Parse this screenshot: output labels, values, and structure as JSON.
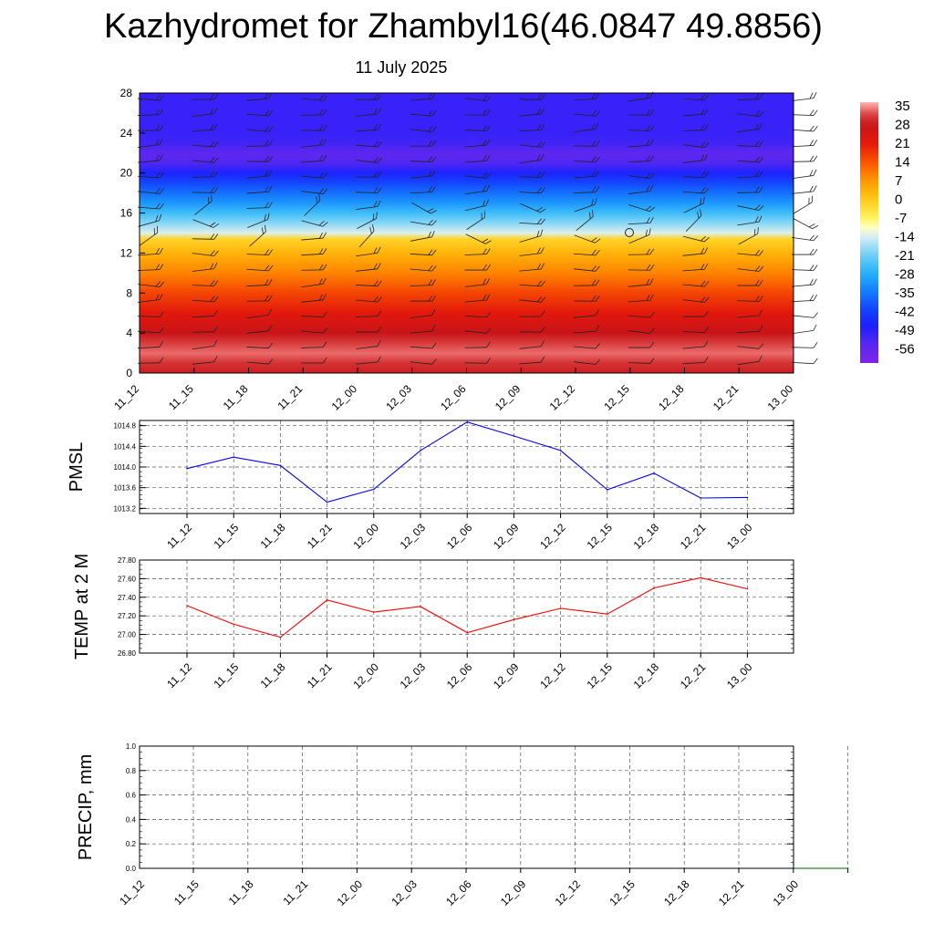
{
  "title": "Kazhydromet for Zhambyl16(46.0847 49.8856)",
  "subtitle": "11 July 2025",
  "time_labels": [
    "11_12",
    "11_15",
    "11_18",
    "11_21",
    "12_00",
    "12_03",
    "12_06",
    "12_09",
    "12_12",
    "12_15",
    "12_18",
    "12_21",
    "13_00"
  ],
  "colors": {
    "pmsl_line": "#0000ff",
    "temp_line": "#ff0000",
    "precip_line": "#006400",
    "grid": "#555555"
  },
  "chart_data": [
    {
      "type": "heatmap",
      "title": "",
      "xlabel": "",
      "ylabel": "",
      "x": [
        "11_12",
        "11_15",
        "11_18",
        "11_21",
        "12_00",
        "12_03",
        "12_06",
        "12_09",
        "12_12",
        "12_15",
        "12_18",
        "12_21",
        "13_00"
      ],
      "yticks": [
        0,
        4,
        8,
        12,
        16,
        20,
        24,
        28
      ],
      "ylim": [
        0,
        28
      ],
      "colorbar": {
        "levels": [
          "35",
          "28",
          "21",
          "14",
          "7",
          "0",
          "-7",
          "-14",
          "-21",
          "-28",
          "-35",
          "-42",
          "-49",
          "-56"
        ],
        "range": [
          -63,
          37
        ]
      },
      "temperature_profile": [
        {
          "level": 0,
          "value": 29
        },
        {
          "level": 1,
          "value": 31
        },
        {
          "level": 2,
          "value": 34
        },
        {
          "level": 3,
          "value": 32
        },
        {
          "level": 4,
          "value": 28
        },
        {
          "level": 6,
          "value": 22
        },
        {
          "level": 8,
          "value": 16
        },
        {
          "level": 10,
          "value": 9
        },
        {
          "level": 12,
          "value": 3
        },
        {
          "level": 13.4,
          "value": -2
        },
        {
          "level": 14,
          "value": -14
        },
        {
          "level": 15,
          "value": -20
        },
        {
          "level": 16,
          "value": -26
        },
        {
          "level": 17,
          "value": -32
        },
        {
          "level": 18,
          "value": -37
        },
        {
          "level": 19,
          "value": -42
        },
        {
          "level": 20,
          "value": -48
        },
        {
          "level": 21,
          "value": -55
        },
        {
          "level": 22,
          "value": -57
        },
        {
          "level": 23,
          "value": -53
        },
        {
          "level": 24,
          "value": -52
        },
        {
          "level": 28,
          "value": -52
        }
      ],
      "grid": false
    },
    {
      "type": "line",
      "ylabel": "PMSL",
      "x": [
        "11_12",
        "11_15",
        "11_18",
        "11_21",
        "12_00",
        "12_03",
        "12_06",
        "12_09",
        "12_12",
        "12_15",
        "12_18",
        "12_21",
        "13_00"
      ],
      "series": [
        {
          "values": [
            1013.97,
            1014.19,
            1014.03,
            1013.32,
            1013.57,
            1014.32,
            1014.87,
            1014.6,
            1014.32,
            1013.56,
            1013.88,
            1013.4,
            1013.41
          ]
        }
      ],
      "yticks": [
        "1013.2",
        "1013.6",
        "1014.0",
        "1014.4",
        "1014.8"
      ],
      "ylim": [
        1013.1,
        1014.9
      ],
      "grid": true
    },
    {
      "type": "line",
      "ylabel": "TEMP at 2 M",
      "x": [
        "11_12",
        "11_15",
        "11_18",
        "11_21",
        "12_00",
        "12_03",
        "12_06",
        "12_09",
        "12_12",
        "12_15",
        "12_18",
        "12_21",
        "13_00"
      ],
      "series": [
        {
          "values": [
            27.31,
            27.11,
            26.97,
            27.37,
            27.24,
            27.3,
            27.02,
            27.16,
            27.28,
            27.22,
            27.5,
            27.61,
            27.49
          ]
        }
      ],
      "yticks": [
        "26.80",
        "27.00",
        "27.20",
        "27.40",
        "27.60",
        "27.80"
      ],
      "ylim": [
        26.8,
        27.8
      ],
      "grid": true
    },
    {
      "type": "line",
      "ylabel": "PRECIP, mm",
      "x": [
        "11_12",
        "11_15",
        "11_18",
        "11_21",
        "12_00",
        "12_03",
        "12_06",
        "12_09",
        "12_12",
        "12_15",
        "12_18",
        "12_21",
        "13_00"
      ],
      "series": [
        {
          "values": [
            0,
            0,
            0,
            0,
            0,
            0,
            0,
            0,
            0,
            0,
            0,
            0,
            0
          ]
        }
      ],
      "yticks": [
        "0.0",
        "0.2",
        "0.4",
        "0.6",
        "0.8",
        "1.0"
      ],
      "ylim": [
        0,
        1
      ],
      "grid": true
    }
  ]
}
